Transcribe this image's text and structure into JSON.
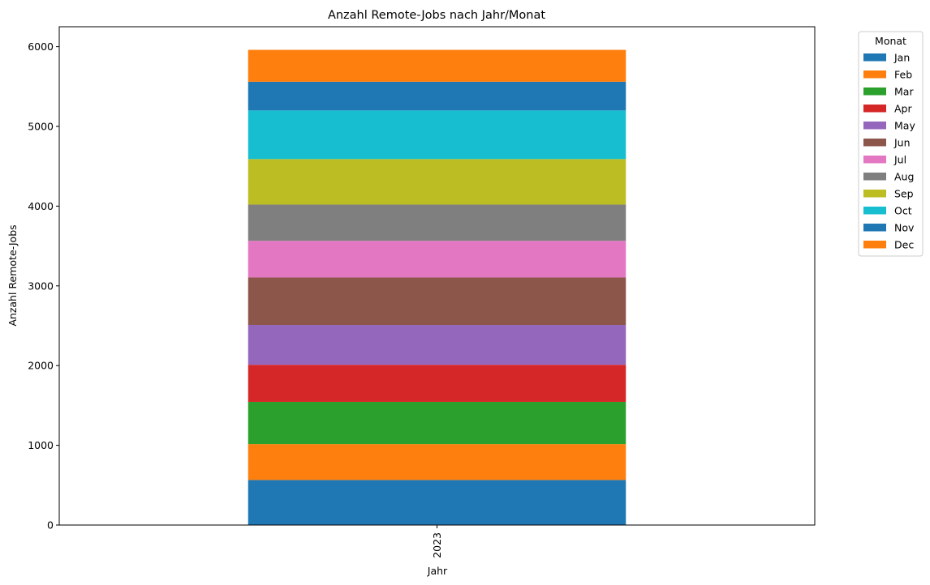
{
  "chart_data": {
    "type": "bar",
    "stacked": true,
    "title": "Anzahl Remote-Jobs nach Jahr/Monat",
    "xlabel": "Jahr",
    "ylabel": "Anzahl Remote-Jobs",
    "categories": [
      "2023"
    ],
    "ylim": [
      0,
      6250
    ],
    "yticks": [
      0,
      1000,
      2000,
      3000,
      4000,
      5000,
      6000
    ],
    "legend": {
      "title": "Monat",
      "placement": "outside-top-right"
    },
    "series": [
      {
        "name": "Jan",
        "color": "#1f77b4",
        "values": [
          565
        ]
      },
      {
        "name": "Feb",
        "color": "#ff7f0e",
        "values": [
          450
        ]
      },
      {
        "name": "Mar",
        "color": "#2ca02c",
        "values": [
          530
        ]
      },
      {
        "name": "Apr",
        "color": "#d62728",
        "values": [
          465
        ]
      },
      {
        "name": "May",
        "color": "#9467bd",
        "values": [
          500
        ]
      },
      {
        "name": "Jun",
        "color": "#8c564b",
        "values": [
          595
        ]
      },
      {
        "name": "Jul",
        "color": "#e377c2",
        "values": [
          460
        ]
      },
      {
        "name": "Aug",
        "color": "#7f7f7f",
        "values": [
          455
        ]
      },
      {
        "name": "Sep",
        "color": "#bcbd22",
        "values": [
          570
        ]
      },
      {
        "name": "Oct",
        "color": "#17becf",
        "values": [
          610
        ]
      },
      {
        "name": "Nov",
        "color": "#1f77b4",
        "values": [
          360
        ]
      },
      {
        "name": "Dec",
        "color": "#ff7f0e",
        "values": [
          400
        ]
      }
    ]
  }
}
